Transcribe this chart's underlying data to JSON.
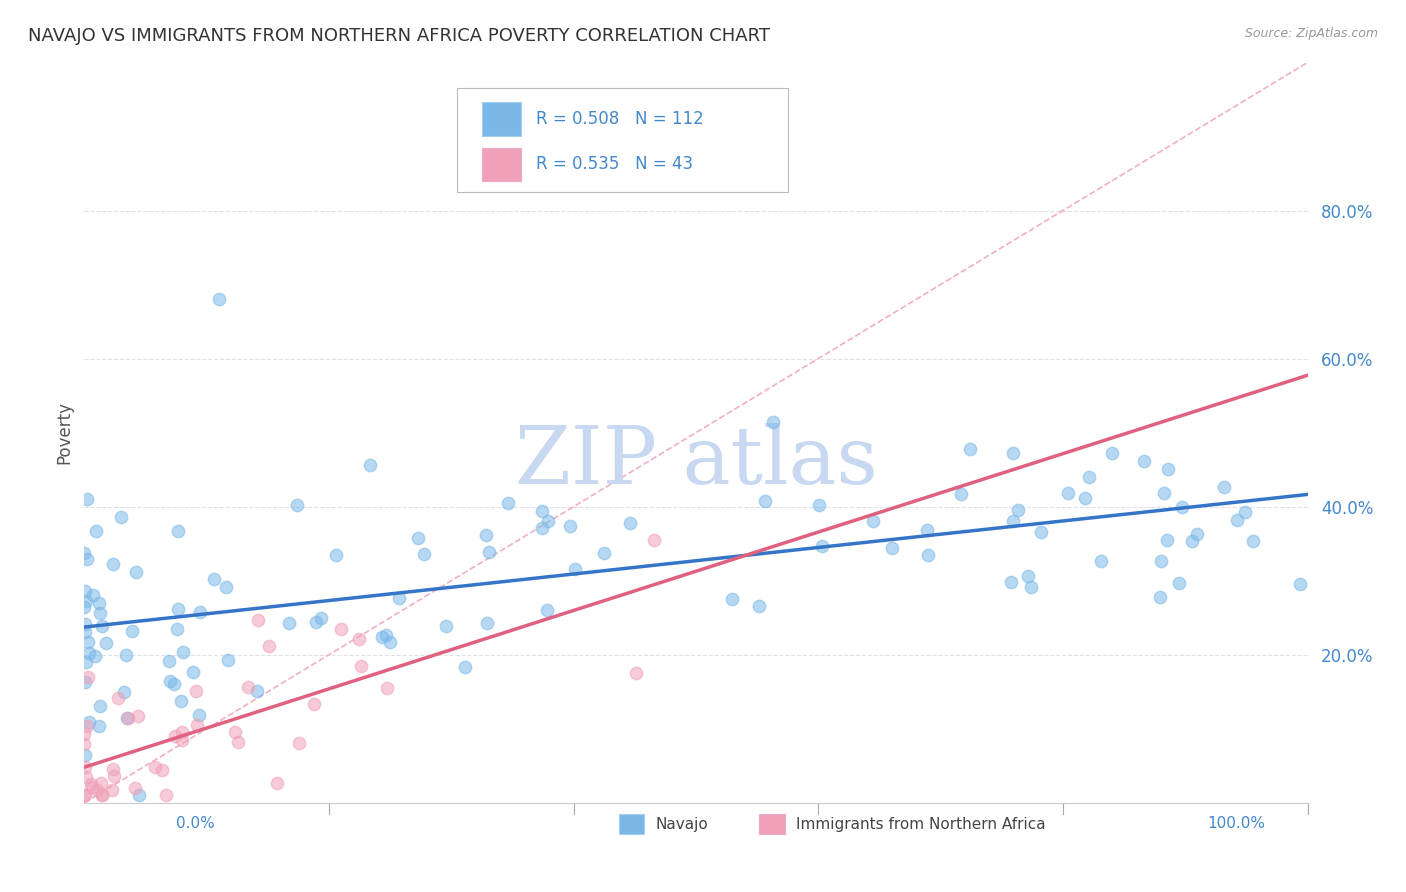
{
  "title": "NAVAJO VS IMMIGRANTS FROM NORTHERN AFRICA POVERTY CORRELATION CHART",
  "source": "Source: ZipAtlas.com",
  "ylabel": "Poverty",
  "navajo_R": 0.508,
  "navajo_N": 112,
  "immigrants_R": 0.535,
  "immigrants_N": 43,
  "navajo_color": "#7ab8e8",
  "immigrants_color": "#f0a0b8",
  "navajo_line_color": "#3575c8",
  "immigrants_line_color": "#e06080",
  "diagonal_color": "#f0b0c0",
  "background_color": "#ffffff",
  "grid_color": "#e0e0e8",
  "title_color": "#333333",
  "axis_label_color": "#555555",
  "tick_label_color": "#4488cc",
  "watermark_color": "#d8e8f8",
  "watermark_text_color": "#c8d8f0",
  "xlim": [
    0.0,
    1.0
  ],
  "ylim": [
    0.0,
    1.0
  ],
  "yticks": [
    0.2,
    0.4,
    0.6,
    0.8
  ],
  "ytick_labels": [
    "20.0%",
    "40.0%",
    "60.0%",
    "80.0%"
  ]
}
